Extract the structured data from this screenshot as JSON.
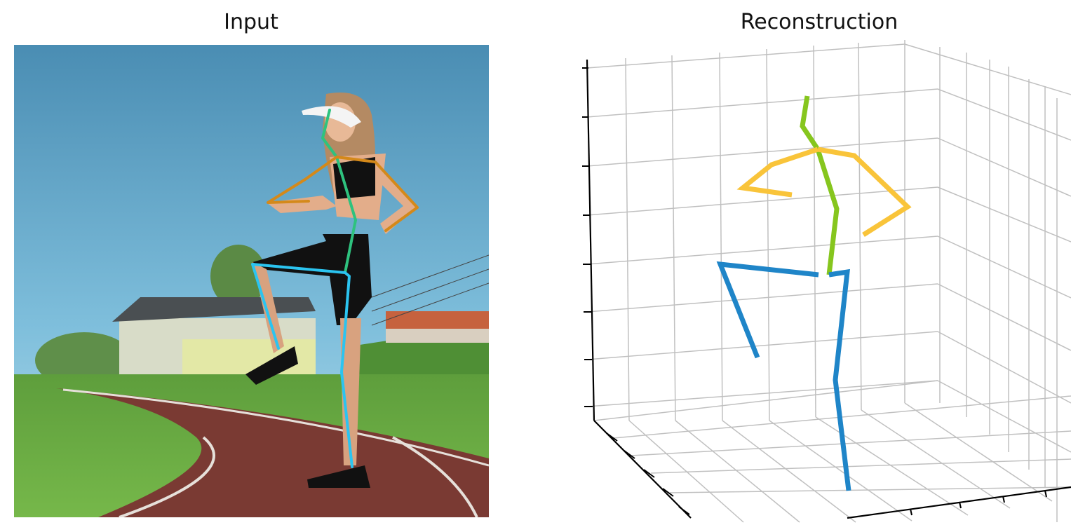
{
  "titles": {
    "input": "Input",
    "reconstruction": "Reconstruction"
  },
  "colors": {
    "head_spine_2d": "#2ec27e",
    "arms_2d": "#d4891a",
    "legs_2d": "#2bc4f0",
    "head_spine_3d": "#86c61e",
    "arms_3d": "#f9c43a",
    "legs_3d": "#1f85c8",
    "grid": "#c0c0c0",
    "axis": "#000000"
  }
}
